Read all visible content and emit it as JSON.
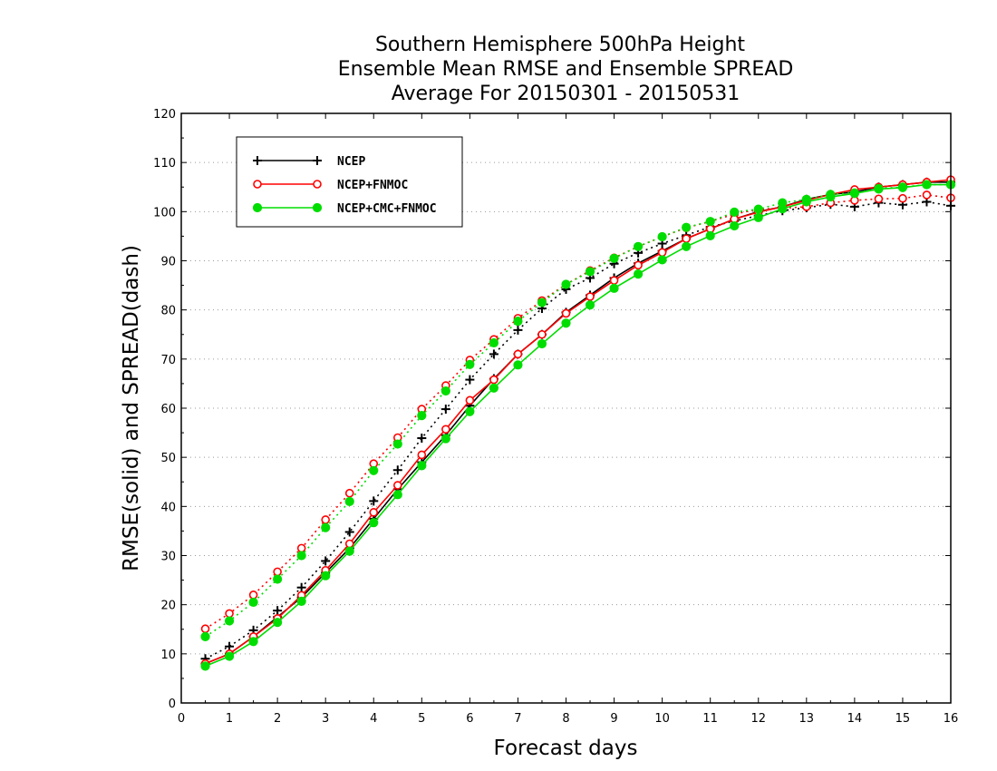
{
  "chart_data": {
    "type": "line",
    "title_lines": [
      "Southern Hemisphere 500hPa Height",
      "Ensemble Mean RMSE and Ensemble SPREAD",
      "Average For 20150301 - 20150531"
    ],
    "xlabel": "Forecast days",
    "ylabel": "RMSE(solid) and SPREAD(dash)",
    "xlim": [
      0,
      16
    ],
    "ylim": [
      0,
      120
    ],
    "xticks": [
      0,
      1,
      2,
      3,
      4,
      5,
      6,
      7,
      8,
      9,
      10,
      11,
      12,
      13,
      14,
      15,
      16
    ],
    "yticks": [
      0,
      10,
      20,
      30,
      40,
      50,
      60,
      70,
      80,
      90,
      100,
      110,
      120
    ],
    "grid": true,
    "legend_position": "top-left",
    "x": [
      0.5,
      1,
      1.5,
      2,
      2.5,
      3,
      3.5,
      4,
      4.5,
      5,
      5.5,
      6,
      6.5,
      7,
      7.5,
      8,
      8.5,
      9,
      9.5,
      10,
      10.5,
      11,
      11.5,
      12,
      12.5,
      13,
      13.5,
      14,
      14.5,
      15,
      15.5,
      16
    ],
    "series": [
      {
        "name": "NCEP",
        "color": "#000000",
        "marker": "plus",
        "rmse": [
          8,
          10,
          13.5,
          17.5,
          21.5,
          26.5,
          31.5,
          37.5,
          43.5,
          49,
          54.5,
          60.5,
          66,
          71,
          75,
          79.5,
          83,
          86.5,
          89.5,
          92,
          94.5,
          96.5,
          98.5,
          100,
          101,
          102.5,
          103.5,
          104,
          105,
          105.5,
          106,
          106
        ],
        "spread": [
          9,
          11.5,
          14.8,
          18.8,
          23.5,
          28.9,
          34.8,
          41.1,
          47.4,
          53.9,
          59.8,
          65.8,
          71,
          75.9,
          80.3,
          84.2,
          86.5,
          89.4,
          91.6,
          93.5,
          95.2,
          96.9,
          98.1,
          99.2,
          100.2,
          100.8,
          101.5,
          101,
          101.8,
          101.4,
          102,
          101.2
        ]
      },
      {
        "name": "NCEP+FNMOC",
        "color": "#ff0000",
        "marker": "circle-open",
        "rmse": [
          8,
          10,
          13.5,
          17.2,
          21.9,
          27,
          32.4,
          38.8,
          44.3,
          50.5,
          55.7,
          61.6,
          65.8,
          71,
          75,
          79.3,
          82.7,
          86,
          89.1,
          91.7,
          94.5,
          96.5,
          98.5,
          99.9,
          101,
          102.3,
          103.5,
          104.5,
          105,
          105.5,
          106,
          106.5
        ],
        "spread": [
          15.1,
          18.2,
          22,
          26.7,
          31.5,
          37.3,
          42.7,
          48.7,
          54,
          59.8,
          64.6,
          69.8,
          74,
          78.3,
          81.9,
          85.2,
          88,
          90.6,
          92.9,
          94.9,
          96.7,
          98,
          99.5,
          100.5,
          100.7,
          101,
          101.8,
          102.3,
          102.6,
          102.7,
          103.4,
          102.8
        ]
      },
      {
        "name": "NCEP+CMC+FNMOC",
        "color": "#00dd00",
        "marker": "circle-filled",
        "rmse": [
          7.5,
          9.5,
          12.5,
          16.4,
          20.7,
          25.9,
          30.9,
          36.7,
          42.4,
          48.3,
          53.8,
          59.3,
          64.1,
          68.8,
          73.1,
          77.3,
          81,
          84.4,
          87.3,
          90.2,
          92.9,
          95.1,
          97.1,
          98.8,
          100.6,
          102,
          103,
          103.7,
          104.6,
          104.9,
          105.5,
          105.5
        ],
        "spread": [
          13.5,
          16.7,
          20.5,
          25.2,
          30,
          35.7,
          41,
          47.3,
          52.7,
          58.5,
          63.5,
          68.9,
          73.3,
          77.7,
          81.5,
          85.2,
          87.8,
          90.5,
          92.9,
          94.9,
          96.8,
          98,
          99.9,
          100.5,
          101.8,
          102.5,
          103.5,
          103.8,
          104.7,
          105,
          105.5,
          105.5
        ]
      }
    ]
  }
}
